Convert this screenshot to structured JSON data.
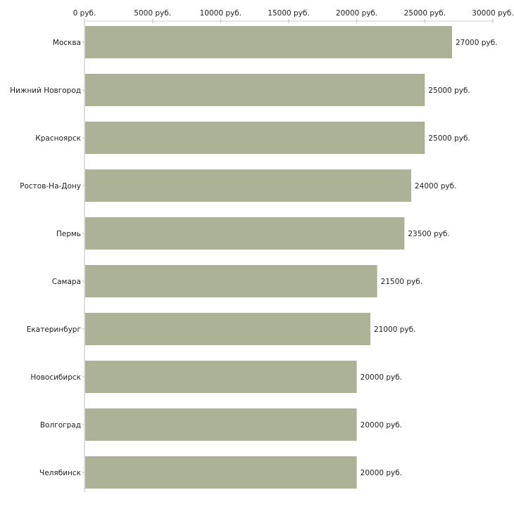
{
  "chart_data": {
    "type": "bar",
    "orientation": "horizontal",
    "title": "",
    "xlabel": "",
    "ylabel": "",
    "xlim": [
      0,
      30000
    ],
    "x_ticks": [
      0,
      5000,
      10000,
      15000,
      20000,
      25000,
      30000
    ],
    "x_tick_labels": [
      "0 руб.",
      "5000 руб.",
      "10000 руб.",
      "15000 руб.",
      "20000 руб.",
      "25000 руб.",
      "30000 руб."
    ],
    "categories": [
      "Москва",
      "Нижний Новгород",
      "Красноярск",
      "Ростов-На-Дону",
      "Пермь",
      "Самара",
      "Екатеринбург",
      "Новосибирск",
      "Волгоград",
      "Челябинск"
    ],
    "values": [
      27000,
      25000,
      25000,
      24000,
      23500,
      21500,
      21000,
      20000,
      20000,
      20000
    ],
    "value_labels": [
      "27000 руб.",
      "25000 руб.",
      "25000 руб.",
      "24000 руб.",
      "23500 руб.",
      "21500 руб.",
      "21000 руб.",
      "20000 руб.",
      "20000 руб.",
      "20000 руб."
    ],
    "bar_color": "#acb296",
    "grid": false
  }
}
